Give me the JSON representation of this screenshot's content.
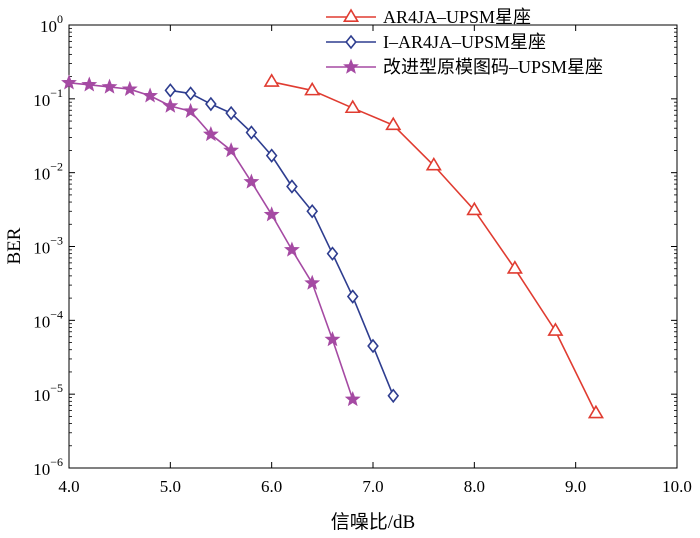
{
  "chart_data": {
    "type": "line",
    "xlabel": "信噪比/dB",
    "ylabel": "BER",
    "xlim": [
      4.0,
      10.0
    ],
    "ylim": [
      1e-06,
      1
    ],
    "yscale": "log",
    "x_ticks": [
      "4.0",
      "5.0",
      "6.0",
      "7.0",
      "8.0",
      "9.0",
      "10.0"
    ],
    "y_ticks": [
      {
        "base": "10",
        "exp": "0"
      },
      {
        "base": "10",
        "exp": "−1"
      },
      {
        "base": "10",
        "exp": "−2"
      },
      {
        "base": "10",
        "exp": "−3"
      },
      {
        "base": "10",
        "exp": "−4"
      },
      {
        "base": "10",
        "exp": "−5"
      },
      {
        "base": "10",
        "exp": "−6"
      }
    ],
    "legend_position": "top-right",
    "grid": false,
    "series": [
      {
        "name": "AR4JA–UPSM星座",
        "color": "#e03c31",
        "marker": "triangle",
        "x": [
          6.0,
          6.4,
          6.8,
          7.2,
          7.6,
          8.0,
          8.4,
          8.8,
          9.2
        ],
        "y": [
          0.17,
          0.13,
          0.075,
          0.044,
          0.0125,
          0.0031,
          0.0005,
          7.2e-05,
          5.5e-06
        ]
      },
      {
        "name": "I–AR4JA–UPSM星座",
        "color": "#2e3d8f",
        "marker": "diamond",
        "x": [
          5.0,
          5.2,
          5.4,
          5.6,
          5.8,
          6.0,
          6.2,
          6.4,
          6.6,
          6.8,
          7.0,
          7.2
        ],
        "y": [
          0.13,
          0.118,
          0.085,
          0.064,
          0.035,
          0.017,
          0.0065,
          0.003,
          0.0008,
          0.00021,
          4.5e-05,
          9.5e-06
        ]
      },
      {
        "name": "改进型原模图码–UPSM星座",
        "color": "#a54aa3",
        "marker": "star",
        "x": [
          4.0,
          4.2,
          4.4,
          4.6,
          4.8,
          5.0,
          5.2,
          5.4,
          5.6,
          5.8,
          6.0,
          6.2,
          6.4,
          6.6,
          6.8
        ],
        "y": [
          0.165,
          0.155,
          0.145,
          0.135,
          0.11,
          0.08,
          0.068,
          0.033,
          0.02,
          0.0075,
          0.0027,
          0.0009,
          0.00032,
          5.5e-05,
          8.5e-06
        ]
      }
    ]
  }
}
